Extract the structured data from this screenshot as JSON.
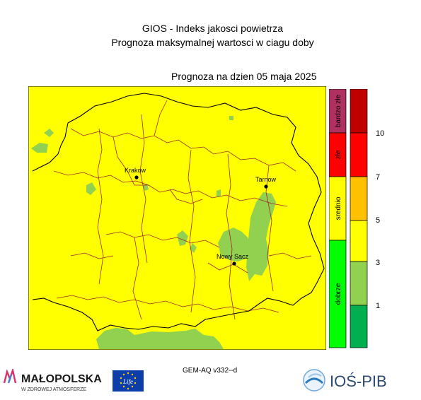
{
  "header": {
    "title_line1": "GIOS - Indeks jakosci powietrza",
    "title_line2": "Prognoza maksymalnej wartosci w ciagu doby",
    "forecast_date": "Prognoza na dzien  05 maja 2025"
  },
  "map": {
    "background_color": "#ffff00",
    "good_zone_color": "#92d050",
    "border_color": "#000000",
    "district_color": "#a02828",
    "cities": [
      {
        "name": "Krakow"
      },
      {
        "name": "Tarnow"
      },
      {
        "name": "Nowy Sacz"
      }
    ]
  },
  "legend": {
    "categories": [
      {
        "label": "bardzo złe",
        "color": "#b03060"
      },
      {
        "label": "złe",
        "color": "#ff0000"
      },
      {
        "label": "srednio",
        "color": "#ffff00"
      },
      {
        "label": "dobrze",
        "color": "#00ff00"
      }
    ],
    "scale": [
      {
        "color": "#c00000"
      },
      {
        "color": "#ff0000"
      },
      {
        "color": "#ffc000"
      },
      {
        "color": "#ffff00"
      },
      {
        "color": "#92d050"
      },
      {
        "color": "#00b050"
      }
    ],
    "ticks": [
      "10",
      "7",
      "5",
      "3",
      "1"
    ]
  },
  "footer": {
    "model_label": "GEM-AQ v332--d",
    "logo_malopolska_name": "MAŁOPOLSKA",
    "logo_malopolska_tagline": "W ZDROWEJ ATMOSFERZE",
    "logo_eu_text": "Life",
    "logo_ios_text": "IOŚ-PIB"
  }
}
